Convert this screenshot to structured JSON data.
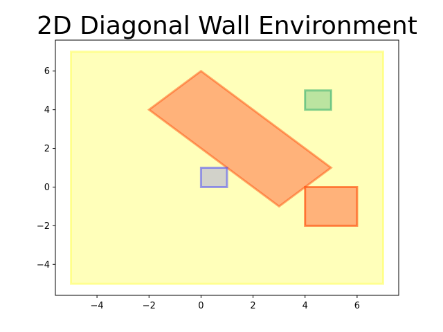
{
  "chart_data": {
    "type": "area",
    "title": "2D Diagonal Wall Environment",
    "xlabel": "",
    "ylabel": "",
    "xlim": [
      -5.6,
      7.6
    ],
    "ylim": [
      -5.6,
      7.6
    ],
    "xticks": [
      -4,
      -2,
      0,
      2,
      4,
      6
    ],
    "yticks": [
      -4,
      -2,
      0,
      2,
      4,
      6
    ],
    "xtick_labels": [
      "−4",
      "−2",
      "0",
      "2",
      "4",
      "6"
    ],
    "ytick_labels": [
      "−4",
      "−2",
      "0",
      "2",
      "4",
      "6"
    ],
    "grid": false,
    "shapes": [
      {
        "id": "environment-boundary",
        "kind": "rect",
        "fill": "#ffff66",
        "stroke": "#ffff66",
        "fill_opacity": 0.45,
        "stroke_opacity": 0.6,
        "points": [
          [
            -5,
            -5
          ],
          [
            7,
            -5
          ],
          [
            7,
            7
          ],
          [
            -5,
            7
          ]
        ]
      },
      {
        "id": "diagonal-wall",
        "kind": "polygon",
        "fill": "#ff7f50",
        "stroke": "#ff4500",
        "fill_opacity": 0.6,
        "stroke_opacity": 0.45,
        "points": [
          [
            -2,
            4
          ],
          [
            0,
            6
          ],
          [
            5,
            1
          ],
          [
            3,
            -1
          ]
        ]
      },
      {
        "id": "goal-region",
        "kind": "rect",
        "fill": "#3cb371",
        "stroke": "#3cb371",
        "fill_opacity": 0.35,
        "stroke_opacity": 0.6,
        "points": [
          [
            4,
            4
          ],
          [
            5,
            4
          ],
          [
            5,
            5
          ],
          [
            4,
            5
          ]
        ]
      },
      {
        "id": "start-region",
        "kind": "rect",
        "fill": "#6a6af0",
        "stroke": "#4040ff",
        "fill_opacity": 0.3,
        "stroke_opacity": 0.5,
        "points": [
          [
            0,
            0
          ],
          [
            1,
            0
          ],
          [
            1,
            1
          ],
          [
            0,
            1
          ]
        ]
      },
      {
        "id": "obstacle-box",
        "kind": "rect",
        "fill": "#ff7f50",
        "stroke": "#ff4500",
        "fill_opacity": 0.6,
        "stroke_opacity": 0.6,
        "points": [
          [
            4,
            -2
          ],
          [
            6,
            -2
          ],
          [
            6,
            0
          ],
          [
            4,
            0
          ]
        ]
      }
    ]
  }
}
